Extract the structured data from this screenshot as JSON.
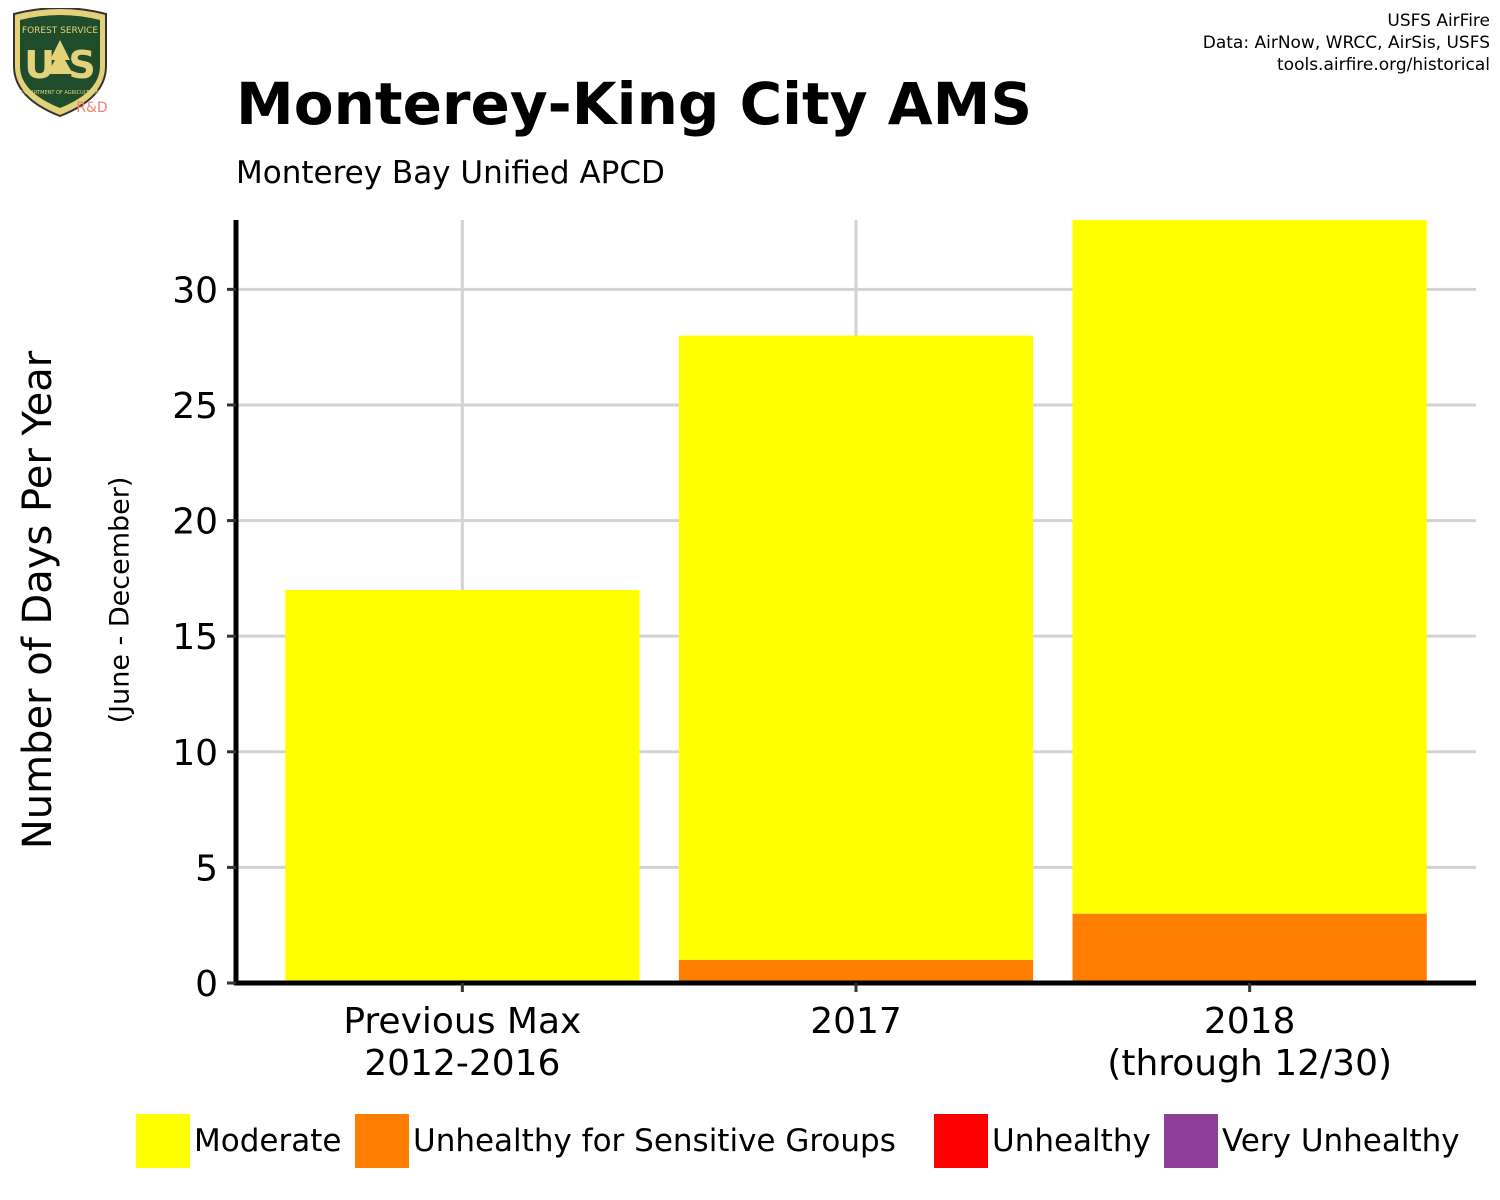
{
  "credits": {
    "line1": "USFS AirFire",
    "line2": "Data: AirNow, WRCC, AirSis, USFS",
    "line3": "tools.airfire.org/historical"
  },
  "logo": {
    "top_text": "FOREST SERVICE",
    "letters": "U S",
    "bottom_text": "DEPARTMENT OF AGRICULTURE",
    "rd": "R&D"
  },
  "colors": {
    "moderate": "#ffff00",
    "usg": "#ff7e00",
    "unhealthy": "#ff0000",
    "very_unhealthy": "#8f3f97",
    "grid": "#d3d3d3"
  },
  "chart_data": {
    "type": "bar",
    "stacked": true,
    "title": "Monterey-King City AMS",
    "subtitle": "Monterey Bay Unified APCD",
    "ylabel": "Number of Days Per Year",
    "ylabel_sub": "(June - December)",
    "categories": [
      [
        "Previous Max",
        "2012-2016"
      ],
      [
        "2017"
      ],
      [
        "2018",
        "(through 12/30)"
      ]
    ],
    "ylim": [
      0,
      33
    ],
    "yticks": [
      0,
      5,
      10,
      15,
      20,
      25,
      30
    ],
    "grid": true,
    "legend_position": "bottom",
    "series": [
      {
        "name": "Unhealthy for Sensitive Groups",
        "color": "#ff7e00",
        "values": [
          0,
          1,
          3
        ]
      },
      {
        "name": "Moderate",
        "color": "#ffff00",
        "values": [
          17,
          27,
          30
        ]
      }
    ],
    "legend": [
      {
        "name": "Moderate",
        "color": "#ffff00"
      },
      {
        "name": "Unhealthy for Sensitive Groups",
        "color": "#ff7e00"
      },
      {
        "name": "Unhealthy",
        "color": "#ff0000"
      },
      {
        "name": "Very Unhealthy",
        "color": "#8f3f97"
      }
    ]
  }
}
